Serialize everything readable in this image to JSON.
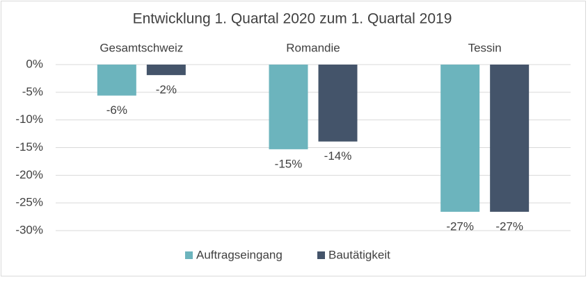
{
  "chart_data": {
    "type": "bar",
    "title": "Entwicklung 1. Quartal 2020 zum 1. Quartal 2019",
    "categories": [
      "Gesamtschweiz",
      "Romandie",
      "Tessin"
    ],
    "series": [
      {
        "name": "Auftragseingang",
        "color": "#6cb4bd",
        "values": [
          -5.6,
          -15.3,
          -26.6
        ],
        "value_labels": [
          "-6%",
          "-15%",
          "-27%"
        ]
      },
      {
        "name": "Bautätigkeit",
        "color": "#44546a",
        "values": [
          -1.9,
          -13.9,
          -26.6
        ],
        "value_labels": [
          "-2%",
          "-14%",
          "-27%"
        ]
      }
    ],
    "ylim": [
      -30,
      0
    ],
    "yticks": [
      {
        "value": 0,
        "label": "0%"
      },
      {
        "value": -5,
        "label": "-5%"
      },
      {
        "value": -10,
        "label": "-10%"
      },
      {
        "value": -15,
        "label": "-15%"
      },
      {
        "value": -20,
        "label": "-20%"
      },
      {
        "value": -25,
        "label": "-25%"
      },
      {
        "value": -30,
        "label": "-30%"
      }
    ],
    "grid": true,
    "legend": "bottom"
  }
}
